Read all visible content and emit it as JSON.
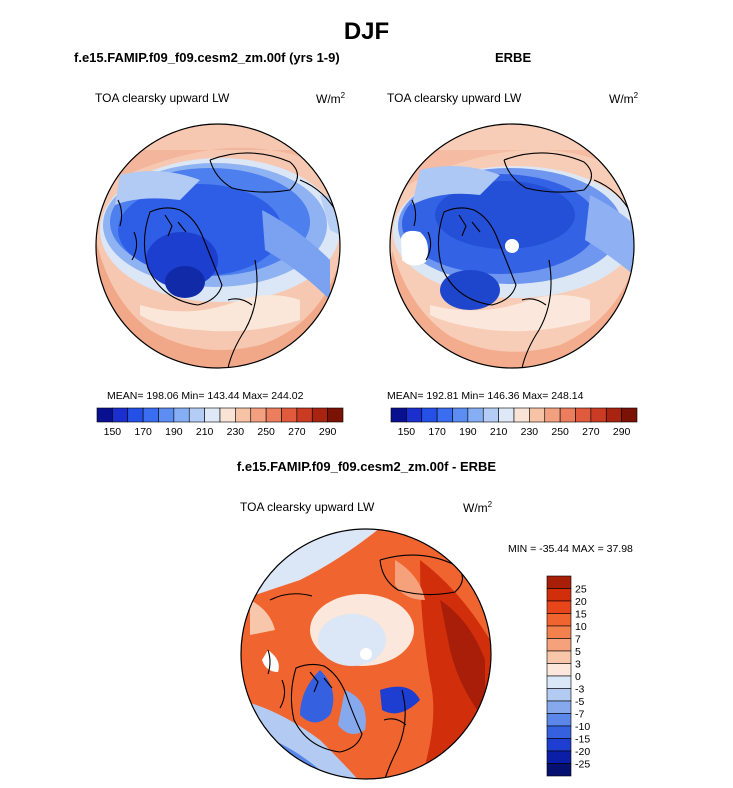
{
  "title": "DJF",
  "panels": {
    "model": {
      "title": "f.e15.FAMIP.f09_f09.cesm2_zm.00f (yrs 1-9)",
      "variable": "TOA clearsky upward LW",
      "units": "W/m",
      "units_exp": "2",
      "stats": "MEAN= 198.06  Min= 143.44  Max= 244.02"
    },
    "obs": {
      "title": "ERBE",
      "variable": "TOA clearsky upward LW",
      "units": "W/m",
      "units_exp": "2",
      "stats": "MEAN= 192.81  Min= 146.36  Max= 248.14"
    },
    "diff": {
      "title": "f.e15.FAMIP.f09_f09.cesm2_zm.00f - ERBE",
      "variable": "TOA clearsky upward LW",
      "units": "W/m",
      "units_exp": "2",
      "stats": "MIN = -35.44 MAX =  37.98"
    }
  },
  "colorbars": {
    "absolute": {
      "labels": [
        "150",
        "170",
        "190",
        "210",
        "230",
        "250",
        "270",
        "290"
      ],
      "colors": [
        "#08108f",
        "#1a2fce",
        "#2450e6",
        "#3a6df0",
        "#5b8df3",
        "#86aef5",
        "#b4cdf7",
        "#dfe8f6",
        "#f9e3d6",
        "#f6c3a7",
        "#f2a07f",
        "#ec7d5d",
        "#e05a3e",
        "#c93b22",
        "#a82310",
        "#7a1206"
      ]
    },
    "difference": {
      "labels": [
        "25",
        "20",
        "15",
        "10",
        "7",
        "5",
        "3",
        "0",
        "-3",
        "-5",
        "-7",
        "-10",
        "-15",
        "-20",
        "-25"
      ],
      "colors": [
        "#a81e08",
        "#d12e0b",
        "#e8461a",
        "#f0642f",
        "#f3814e",
        "#f5a27c",
        "#f8c7ab",
        "#fbe7dc",
        "#dbe6f6",
        "#b3cbf2",
        "#86a9ee",
        "#5b86ea",
        "#3561e0",
        "#1d3ed1",
        "#0b1ea8",
        "#061070"
      ]
    }
  }
}
